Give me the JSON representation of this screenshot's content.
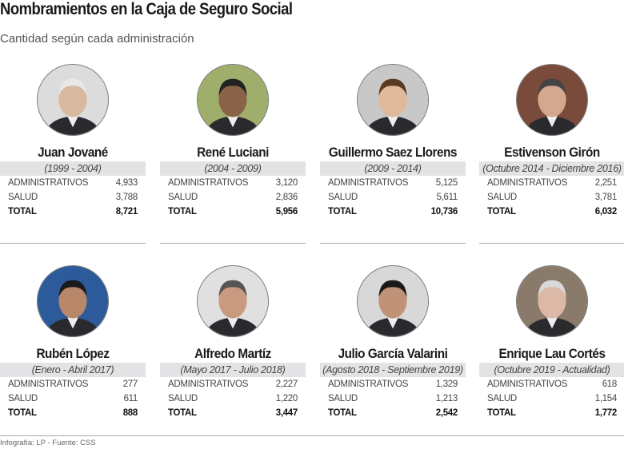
{
  "title": "Nombramientos en la Caja de Seguro Social",
  "subtitle": "Cantidad según cada administración",
  "row_labels": {
    "admin": "ADMINISTRATIVOS",
    "salud": "SALUD",
    "total": "TOTAL"
  },
  "people": [
    {
      "name": "Juan Jované",
      "period": "(1999 - 2004)",
      "administrativos": "4,933",
      "salud": "3,788",
      "total": "8,721"
    },
    {
      "name": "René Luciani",
      "period": "(2004 - 2009)",
      "administrativos": "3,120",
      "salud": "2,836",
      "total": "5,956"
    },
    {
      "name": "Guillermo Saez Llorens",
      "period": "(2009 - 2014)",
      "administrativos": "5,125",
      "salud": "5,611",
      "total": "10,736"
    },
    {
      "name": "Estivenson Girón",
      "period": "(Octubre 2014 - Diciembre 2016)",
      "administrativos": "2,251",
      "salud": "3,781",
      "total": "6,032"
    },
    {
      "name": "Rubén López",
      "period": "(Enero - Abril 2017)",
      "administrativos": "277",
      "salud": "611",
      "total": "888"
    },
    {
      "name": "Alfredo Martíz",
      "period": "(Mayo 2017 - Julio 2018)",
      "administrativos": "2,227",
      "salud": "1,220",
      "total": "3,447"
    },
    {
      "name": "Julio García Valarini",
      "period": "(Agosto 2018 - Septiembre 2019)",
      "administrativos": "1,329",
      "salud": "1,213",
      "total": "2,542"
    },
    {
      "name": "Enrique Lau Cortés",
      "period": "(Octubre 2019 - Actualidad)",
      "administrativos": "618",
      "salud": "1,154",
      "total": "1,772"
    }
  ],
  "footer": "Infografía: LP - Fuente: CSS"
}
